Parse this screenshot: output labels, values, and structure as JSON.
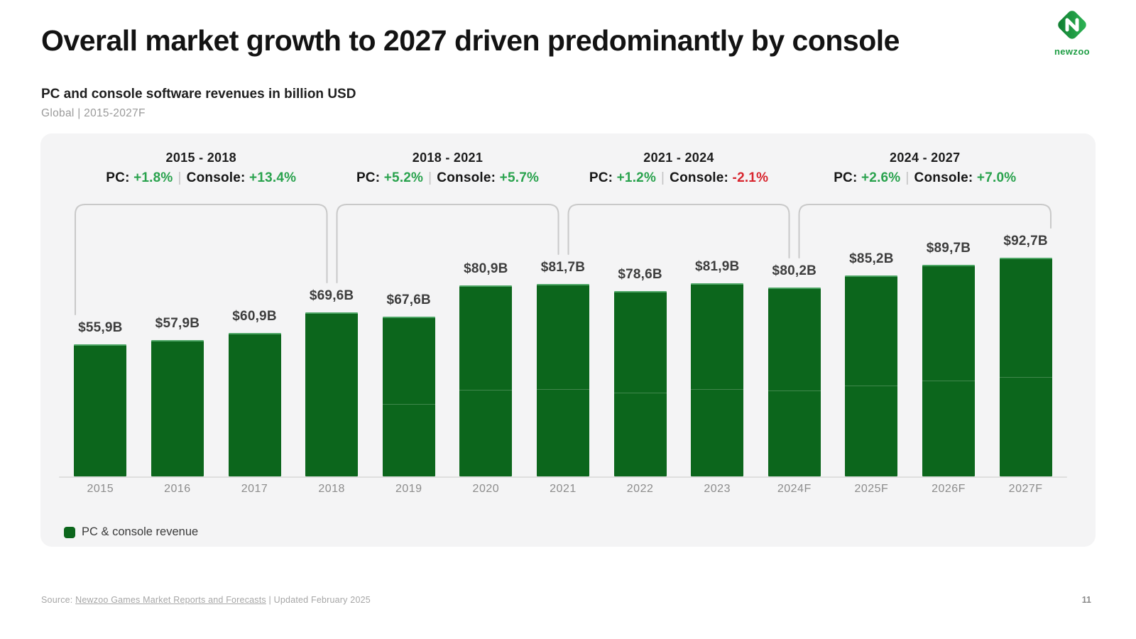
{
  "page": {
    "title": "Overall market growth to 2027 driven predominantly by console",
    "page_number": "11"
  },
  "logo": {
    "wordmark": "newzoo"
  },
  "header": {
    "chart_heading": "PC and console software revenues in billion USD",
    "scope_line": "Global | 2015-2027F"
  },
  "legend": {
    "label": "PC & console revenue"
  },
  "footer": {
    "source_prefix": "Source: ",
    "source_link": "Newzoo Games Market Reports and Forecasts",
    "source_suffix": " | Updated February 2025"
  },
  "colors": {
    "bar": "#0c661c",
    "positive": "#29a24d",
    "negative": "#d8252e",
    "bracket": "#c9c9c9",
    "panel_bg": "#f4f4f5"
  },
  "chart_data": {
    "type": "bar",
    "title": "PC and console software revenues in billion USD",
    "scope": "Global | 2015-2027F",
    "unit": "billion USD",
    "ylim": [
      0,
      100
    ],
    "grid": false,
    "legend_position": "bottom-left",
    "categories": [
      "2015",
      "2016",
      "2017",
      "2018",
      "2019",
      "2020",
      "2021",
      "2022",
      "2023",
      "2024F",
      "2025F",
      "2026F",
      "2027F"
    ],
    "values": [
      55.9,
      57.9,
      60.9,
      69.6,
      67.6,
      80.9,
      81.7,
      78.6,
      81.9,
      80.2,
      85.2,
      89.7,
      92.7
    ],
    "value_labels": [
      "$55,9B",
      "$57,9B",
      "$60,9B",
      "$69,6B",
      "$67,6B",
      "$80,9B",
      "$81,7B",
      "$78,6B",
      "$81,9B",
      "$80,2B",
      "$85,2B",
      "$89,7B",
      "$92,7B"
    ],
    "series_legend": [
      "PC & console revenue"
    ],
    "periods": [
      {
        "label": "2015 - 2018",
        "pc_label": "PC:",
        "pc": "+1.8%",
        "console_label": "Console:",
        "console": "+13.4%",
        "start_index": 0,
        "end_index": 3
      },
      {
        "label": "2018 - 2021",
        "pc_label": "PC:",
        "pc": "+5.2%",
        "console_label": "Console:",
        "console": "+5.7%",
        "start_index": 3,
        "end_index": 6
      },
      {
        "label": "2021 - 2024",
        "pc_label": "PC:",
        "pc": "+1.2%",
        "console_label": "Console:",
        "console": "-2.1%",
        "start_index": 6,
        "end_index": 9
      },
      {
        "label": "2024 - 2027",
        "pc_label": "PC:",
        "pc": "+2.6%",
        "console_label": "Console:",
        "console": "+7.0%",
        "start_index": 9,
        "end_index": 12
      }
    ],
    "layout_hints": {
      "bar_divider_fraction_from_bottom": 0.45,
      "bar_divider_start_index": 4
    }
  }
}
